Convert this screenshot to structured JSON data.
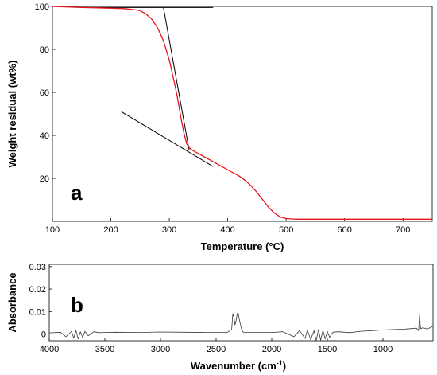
{
  "chart_data": [
    {
      "type": "line",
      "panel_label": "a",
      "xlabel": "Temperature (°C)",
      "ylabel": "Weight residual (wt%)",
      "xlim": [
        100,
        750
      ],
      "ylim": [
        0,
        100
      ],
      "xticks": [
        100,
        200,
        300,
        400,
        500,
        600,
        700
      ],
      "yticks": [
        20,
        40,
        60,
        80,
        100
      ],
      "grid": false,
      "series": [
        {
          "color": "#e8141c",
          "x": [
            100,
            150,
            200,
            220,
            240,
            250,
            260,
            270,
            280,
            290,
            300,
            310,
            315,
            320,
            325,
            330,
            335,
            340,
            350,
            360,
            370,
            380,
            390,
            400,
            410,
            420,
            430,
            440,
            450,
            460,
            470,
            480,
            490,
            500,
            510,
            520,
            600,
            700,
            750
          ],
          "y": [
            100,
            99.5,
            99.2,
            99,
            98.5,
            98,
            96.5,
            94,
            90,
            84,
            75,
            63,
            56,
            48,
            41,
            36,
            34,
            33,
            31.5,
            30,
            28.5,
            27,
            25.5,
            24,
            22.5,
            21,
            19,
            16.5,
            13.5,
            10,
            6.5,
            3.8,
            2,
            1.3,
            1.1,
            1,
            1,
            1,
            1
          ]
        }
      ],
      "tangent_lines": [
        {
          "color": "#000000",
          "x": [
            150,
            375
          ],
          "y": [
            99.5,
            99.5
          ]
        },
        {
          "color": "#000000",
          "x": [
            290,
            334
          ],
          "y": [
            99.5,
            33
          ]
        },
        {
          "color": "#000000",
          "x": [
            218,
            375
          ],
          "y": [
            51,
            25.5
          ]
        }
      ]
    },
    {
      "type": "line",
      "panel_label": "b",
      "xlabel": "Wavenumber (cm",
      "xlabel_sup": "-1",
      "xlabel_end": ")",
      "ylabel": "Absorbance",
      "xlim": [
        4000,
        550
      ],
      "ylim": [
        -0.003,
        0.031
      ],
      "xticks": [
        4000,
        3500,
        3000,
        2500,
        2000,
        1500,
        1000
      ],
      "yticks": [
        0,
        0.01,
        0.02,
        0.03
      ],
      "ytick_labels": [
        "0",
        "0.01",
        "0.02",
        "0.03"
      ],
      "grid": false,
      "series": [
        {
          "color": "#3a3a3a",
          "x": [
            4000,
            3900,
            3850,
            3800,
            3780,
            3760,
            3740,
            3720,
            3700,
            3680,
            3650,
            3600,
            3550,
            3400,
            3200,
            3000,
            2800,
            2600,
            2400,
            2360,
            2350,
            2340,
            2330,
            2320,
            2310,
            2300,
            2290,
            2280,
            2270,
            2260,
            2250,
            2200,
            2000,
            1900,
            1800,
            1750,
            1700,
            1680,
            1650,
            1620,
            1600,
            1580,
            1560,
            1540,
            1520,
            1500,
            1480,
            1450,
            1400,
            1300,
            1200,
            1100,
            1000,
            900,
            800,
            700,
            680,
            670,
            665,
            660,
            640,
            600,
            550
          ],
          "y": [
            0.0005,
            0.0008,
            -0.0012,
            0.0012,
            -0.0018,
            0.0015,
            -0.0022,
            0.001,
            -0.0016,
            0.0012,
            -0.0008,
            0.001,
            0.0006,
            0.0008,
            0.0007,
            0.0009,
            0.0008,
            0.0007,
            0.0007,
            0.002,
            0.009,
            0.0075,
            0.004,
            0.006,
            0.0092,
            0.009,
            0.006,
            0.004,
            0.002,
            0.001,
            0.0007,
            0.0007,
            0.0007,
            0.001,
            -0.0012,
            0.0015,
            -0.002,
            0.0018,
            -0.0025,
            0.0015,
            -0.003,
            0.002,
            -0.0028,
            0.0016,
            -0.0022,
            0.0012,
            -0.0015,
            0.0008,
            0.001,
            0.0006,
            0.0012,
            0.0015,
            0.0018,
            0.002,
            0.0022,
            0.0026,
            0.0015,
            0.0088,
            0.004,
            0.0024,
            0.0028,
            0.0022,
            0.0035
          ]
        }
      ]
    }
  ]
}
